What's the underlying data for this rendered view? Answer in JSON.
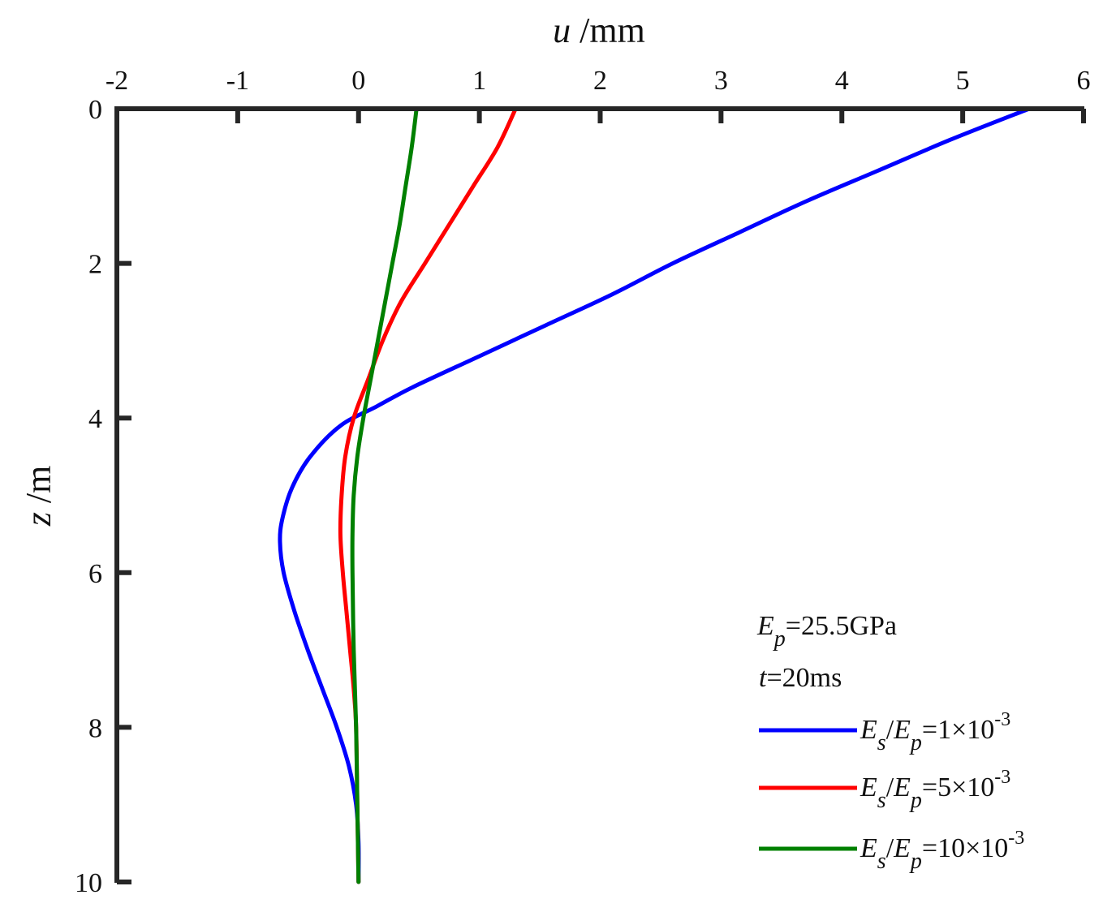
{
  "chart_data": {
    "type": "line",
    "title": "",
    "xlabel": {
      "symbol": "u",
      "unit": " /mm"
    },
    "ylabel": {
      "symbol": "z",
      "unit": " /m"
    },
    "xlim": [
      -2,
      6
    ],
    "ylim": [
      0,
      10
    ],
    "y_inverted": true,
    "x_axis_position": "top",
    "xticks": [
      -2,
      -1,
      0,
      1,
      2,
      3,
      4,
      5,
      6
    ],
    "yticks": [
      0,
      2,
      4,
      6,
      8,
      10
    ],
    "grid": false,
    "legend_position": "bottom-right",
    "annotations": [
      {
        "symbol": "E",
        "sub": "p",
        "text": "=25.5GPa"
      },
      {
        "symbol": "t",
        "text": "=20ms"
      }
    ],
    "series": [
      {
        "name": "Es/Ep=1×10-3",
        "legend": {
          "a": "E",
          "a_sub": "s",
          "sep": "/",
          "b": "E",
          "b_sub": "p",
          "value": "=1×10",
          "exp": "-3"
        },
        "color": "#0000ff",
        "points": [
          [
            5.55,
            0
          ],
          [
            4.9,
            0.4
          ],
          [
            4.3,
            0.8
          ],
          [
            3.7,
            1.2
          ],
          [
            3.15,
            1.6
          ],
          [
            2.6,
            2.0
          ],
          [
            2.1,
            2.4
          ],
          [
            1.55,
            2.8
          ],
          [
            1.0,
            3.2
          ],
          [
            0.45,
            3.6
          ],
          [
            0.15,
            3.85
          ],
          [
            -0.15,
            4.1
          ],
          [
            -0.4,
            4.5
          ],
          [
            -0.55,
            4.9
          ],
          [
            -0.63,
            5.3
          ],
          [
            -0.65,
            5.6
          ],
          [
            -0.62,
            6.0
          ],
          [
            -0.53,
            6.5
          ],
          [
            -0.42,
            7.0
          ],
          [
            -0.3,
            7.5
          ],
          [
            -0.18,
            8.0
          ],
          [
            -0.08,
            8.5
          ],
          [
            -0.02,
            9.0
          ],
          [
            0.0,
            9.5
          ],
          [
            0.0,
            10.0
          ]
        ]
      },
      {
        "name": "Es/Ep=5×10-3",
        "legend": {
          "a": "E",
          "a_sub": "s",
          "sep": "/",
          "b": "E",
          "b_sub": "p",
          "value": "=5×10",
          "exp": "-3"
        },
        "color": "#ff0000",
        "points": [
          [
            1.3,
            0
          ],
          [
            1.15,
            0.5
          ],
          [
            0.95,
            1.0
          ],
          [
            0.75,
            1.5
          ],
          [
            0.55,
            2.0
          ],
          [
            0.35,
            2.5
          ],
          [
            0.2,
            3.0
          ],
          [
            0.08,
            3.5
          ],
          [
            -0.04,
            4.0
          ],
          [
            -0.11,
            4.5
          ],
          [
            -0.14,
            5.0
          ],
          [
            -0.15,
            5.5
          ],
          [
            -0.13,
            6.0
          ],
          [
            -0.1,
            6.5
          ],
          [
            -0.07,
            7.0
          ],
          [
            -0.04,
            7.5
          ],
          [
            -0.02,
            8.0
          ],
          [
            -0.01,
            9.0
          ],
          [
            0.0,
            10.0
          ]
        ]
      },
      {
        "name": "Es/Ep=10×10-3",
        "legend": {
          "a": "E",
          "a_sub": "s",
          "sep": "/",
          "b": "E",
          "b_sub": "p",
          "value": "=10×10",
          "exp": "-3"
        },
        "color": "#008000",
        "points": [
          [
            0.48,
            0
          ],
          [
            0.44,
            0.5
          ],
          [
            0.39,
            1.0
          ],
          [
            0.34,
            1.5
          ],
          [
            0.28,
            2.0
          ],
          [
            0.22,
            2.5
          ],
          [
            0.16,
            3.0
          ],
          [
            0.1,
            3.5
          ],
          [
            0.04,
            4.0
          ],
          [
            -0.01,
            4.5
          ],
          [
            -0.04,
            5.0
          ],
          [
            -0.05,
            5.5
          ],
          [
            -0.05,
            6.0
          ],
          [
            -0.04,
            7.0
          ],
          [
            -0.02,
            8.0
          ],
          [
            -0.01,
            9.0
          ],
          [
            0.0,
            10.0
          ]
        ]
      }
    ]
  }
}
